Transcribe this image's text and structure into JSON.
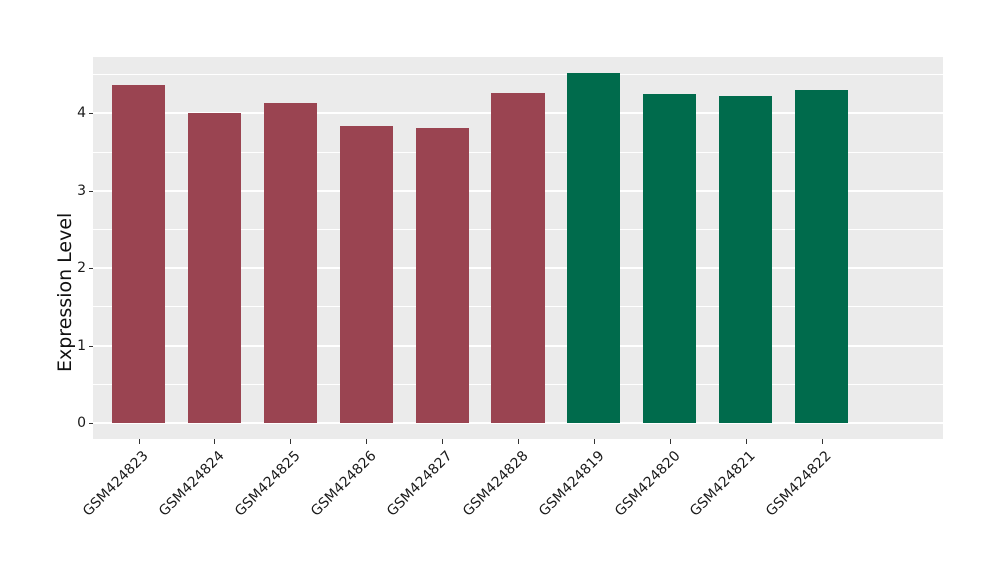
{
  "figure": {
    "background": "#FFFFFF"
  },
  "chart_data": {
    "type": "bar",
    "title": "",
    "xlabel": "",
    "ylabel": "Expression Level",
    "categories": [
      "GSM424823",
      "GSM424824",
      "GSM424825",
      "GSM424826",
      "GSM424827",
      "GSM424828",
      "GSM424819",
      "GSM424820",
      "GSM424821",
      "GSM424822"
    ],
    "values": [
      4.36,
      4.0,
      4.14,
      3.84,
      3.81,
      4.26,
      4.52,
      4.25,
      4.22,
      4.3
    ],
    "bar_colors": [
      "#9A4451",
      "#9A4451",
      "#9A4451",
      "#9A4451",
      "#9A4451",
      "#9A4451",
      "#006B4C",
      "#006B4C",
      "#006B4C",
      "#006B4C"
    ],
    "color_groups": {
      "maroon": "#9A4451",
      "green": "#006B4C"
    },
    "yticks": [
      0,
      1,
      2,
      3,
      4
    ],
    "ytick_labels": [
      "0",
      "1",
      "2",
      "3",
      "4"
    ],
    "minor_ticks": [
      0.5,
      1.5,
      2.5,
      3.5,
      4.5
    ],
    "ylim": [
      0,
      4.5
    ],
    "grid": "on",
    "legend_position": "none",
    "panel_background": "#EBEBEB",
    "gridline_color": "#FFFFFF",
    "axis_text_color": "#1A1A1A"
  }
}
